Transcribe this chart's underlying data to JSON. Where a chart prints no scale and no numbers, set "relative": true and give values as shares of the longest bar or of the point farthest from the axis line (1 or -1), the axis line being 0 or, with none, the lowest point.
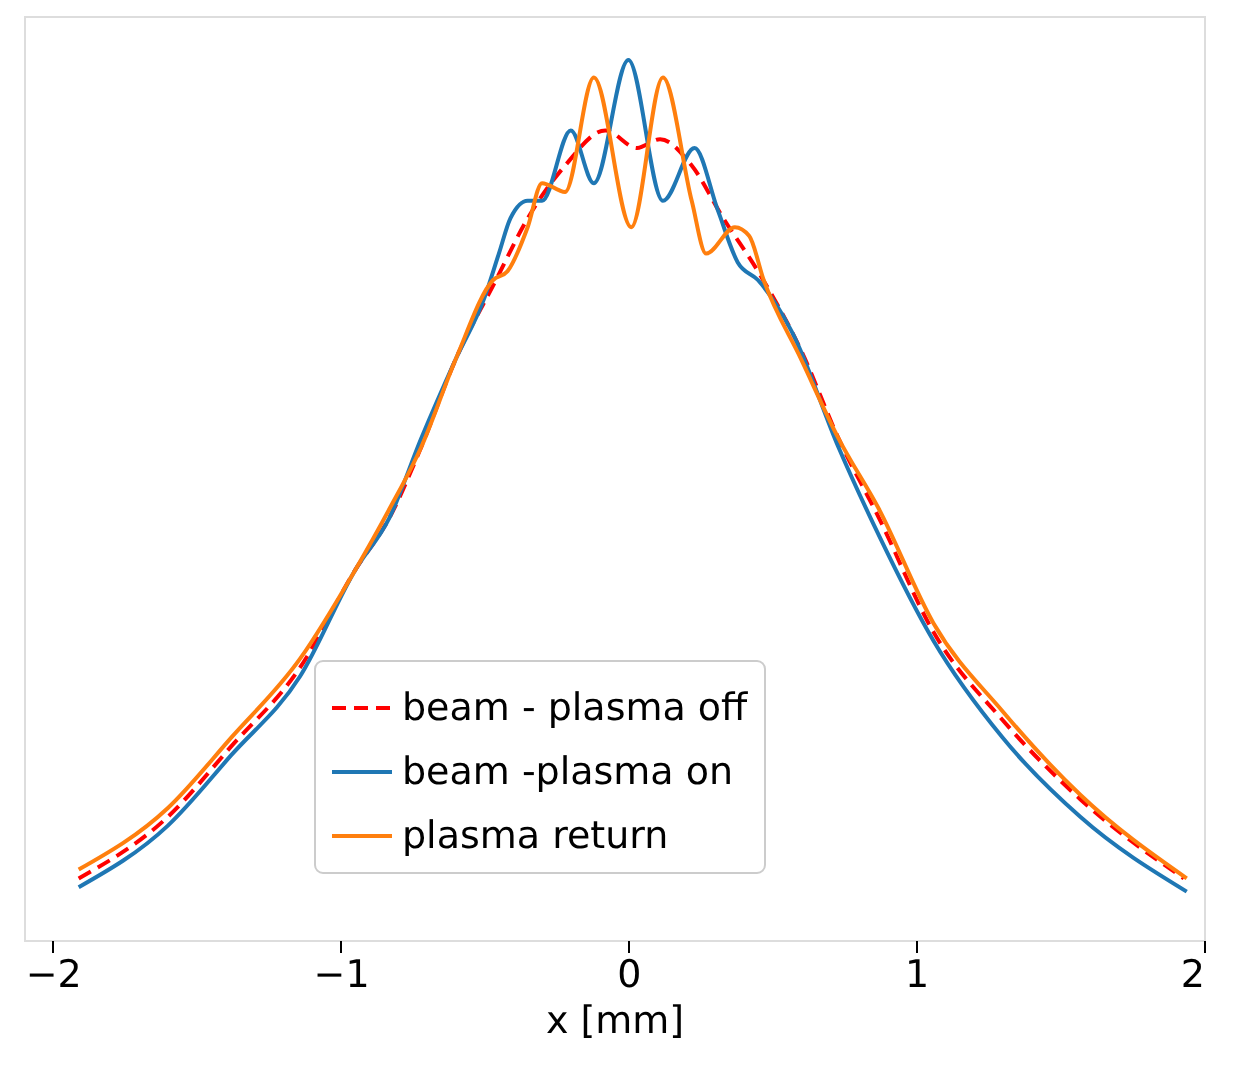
{
  "chart_data": {
    "type": "line",
    "xlabel": "x [mm]",
    "relative": true,
    "xlim": [
      -2.1,
      2.0
    ],
    "xticks": [
      -2,
      -1,
      0,
      1,
      2
    ],
    "grid": false,
    "legend": "bottom",
    "marker": "none",
    "series": [
      {
        "name": "beam - plasma off",
        "color": "#ff0000",
        "line_style": "dashed",
        "x": [
          -1.91,
          -1.6,
          -1.38,
          -1.14,
          -0.95,
          -0.83,
          -0.72,
          -0.6,
          -0.46,
          -0.35,
          -0.22,
          -0.08,
          0.03,
          0.11,
          0.22,
          0.33,
          0.45,
          0.6,
          0.73,
          0.87,
          1.06,
          1.3,
          1.57,
          1.93
        ],
        "values": [
          0.07,
          0.14,
          0.22,
          0.31,
          0.42,
          0.48,
          0.56,
          0.66,
          0.75,
          0.82,
          0.88,
          0.92,
          0.9,
          0.91,
          0.88,
          0.82,
          0.76,
          0.67,
          0.57,
          0.48,
          0.35,
          0.25,
          0.16,
          0.07
        ]
      },
      {
        "name": "beam -plasma on",
        "color": "#1f77b4",
        "line_style": "solid",
        "x": [
          -1.91,
          -1.6,
          -1.38,
          -1.14,
          -0.95,
          -0.83,
          -0.72,
          -0.6,
          -0.5,
          -0.45,
          -0.41,
          -0.35,
          -0.3,
          -0.2,
          -0.12,
          0.0,
          0.12,
          0.23,
          0.31,
          0.38,
          0.45,
          0.57,
          0.73,
          0.87,
          1.06,
          1.3,
          1.57,
          1.94
        ],
        "values": [
          0.06,
          0.13,
          0.21,
          0.3,
          0.42,
          0.48,
          0.57,
          0.66,
          0.73,
          0.78,
          0.82,
          0.84,
          0.84,
          0.92,
          0.86,
          1.0,
          0.84,
          0.9,
          0.83,
          0.77,
          0.75,
          0.69,
          0.56,
          0.46,
          0.34,
          0.23,
          0.14,
          0.055
        ]
      },
      {
        "name": "plasma return",
        "color": "#ff7f0e",
        "line_style": "solid",
        "x": [
          -1.91,
          -1.6,
          -1.38,
          -1.14,
          -0.95,
          -0.83,
          -0.72,
          -0.6,
          -0.47,
          -0.42,
          -0.35,
          -0.3,
          -0.22,
          -0.12,
          0.01,
          0.12,
          0.22,
          0.27,
          0.37,
          0.42,
          0.47,
          0.6,
          0.73,
          0.87,
          1.06,
          1.3,
          1.57,
          1.94
        ],
        "values": [
          0.08,
          0.15,
          0.23,
          0.32,
          0.42,
          0.49,
          0.56,
          0.66,
          0.75,
          0.76,
          0.81,
          0.86,
          0.85,
          0.98,
          0.81,
          0.98,
          0.84,
          0.78,
          0.81,
          0.8,
          0.75,
          0.66,
          0.57,
          0.49,
          0.36,
          0.26,
          0.165,
          0.07
        ]
      }
    ]
  }
}
